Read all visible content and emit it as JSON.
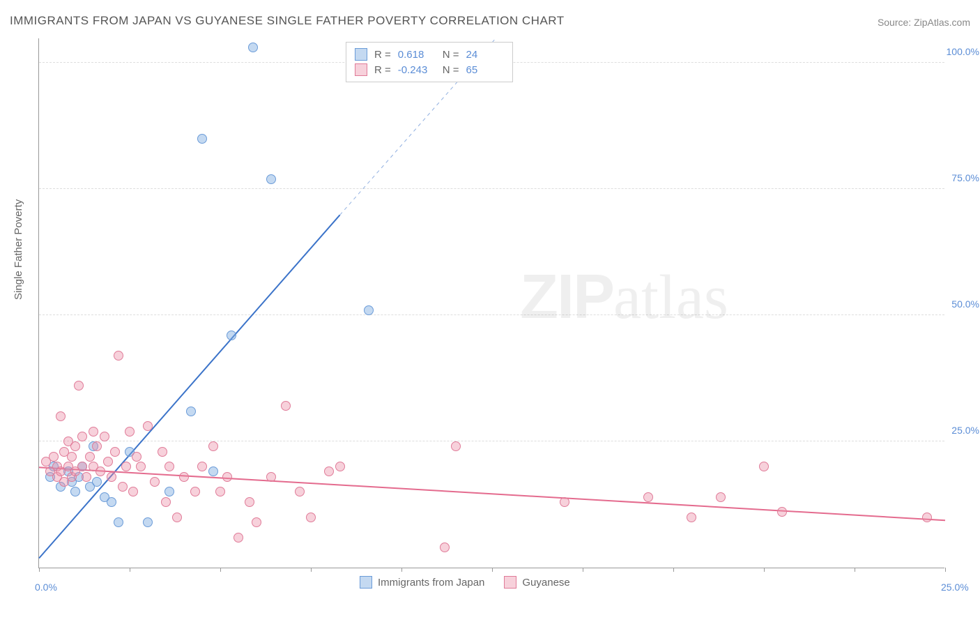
{
  "title": "IMMIGRANTS FROM JAPAN VS GUYANESE SINGLE FATHER POVERTY CORRELATION CHART",
  "source_label": "Source: ZipAtlas.com",
  "y_axis_label": "Single Father Poverty",
  "watermark_text_bold": "ZIP",
  "watermark_text_light": "atlas",
  "chart": {
    "type": "scatter",
    "xlim": [
      0,
      25
    ],
    "ylim": [
      0,
      105
    ],
    "x_ticks": [
      0,
      2.5,
      5,
      7.5,
      10,
      12.5,
      15,
      17.5,
      20,
      22.5,
      25
    ],
    "x_tick_labels": {
      "0": "0.0%",
      "25": "25.0%"
    },
    "y_ticks": [
      25,
      50,
      75,
      100
    ],
    "y_tick_labels": {
      "25": "25.0%",
      "50": "50.0%",
      "75": "75.0%",
      "100": "100.0%"
    },
    "background_color": "#ffffff",
    "grid_color": "#dddddd",
    "axis_color": "#999999",
    "tick_label_color": "#5b8dd6",
    "marker_radius": 7,
    "series": [
      {
        "name": "Immigrants from Japan",
        "color_fill": "rgba(124,170,223,0.45)",
        "color_stroke": "#6a9bd8",
        "r_value": "0.618",
        "n_value": "24",
        "trend": {
          "x1": 0,
          "y1": 2,
          "x2": 8.3,
          "y2": 70,
          "dash_x2": 12.6,
          "dash_y2": 105,
          "color": "#3b73c9",
          "width": 2
        },
        "points": [
          [
            0.3,
            18
          ],
          [
            0.4,
            20
          ],
          [
            0.6,
            16
          ],
          [
            0.8,
            19
          ],
          [
            0.9,
            17
          ],
          [
            1.0,
            15
          ],
          [
            1.1,
            18
          ],
          [
            1.2,
            20
          ],
          [
            1.4,
            16
          ],
          [
            1.5,
            24
          ],
          [
            1.6,
            17
          ],
          [
            1.8,
            14
          ],
          [
            2.0,
            13
          ],
          [
            2.2,
            9
          ],
          [
            2.5,
            23
          ],
          [
            3.0,
            9
          ],
          [
            3.6,
            15
          ],
          [
            4.2,
            31
          ],
          [
            4.5,
            85
          ],
          [
            4.8,
            19
          ],
          [
            5.3,
            46
          ],
          [
            5.9,
            103
          ],
          [
            6.4,
            77
          ],
          [
            9.1,
            51
          ]
        ]
      },
      {
        "name": "Guyanese",
        "color_fill": "rgba(235,140,165,0.40)",
        "color_stroke": "#e07b98",
        "r_value": "-0.243",
        "n_value": "65",
        "trend": {
          "x1": 0,
          "y1": 20,
          "x2": 25,
          "y2": 9.5,
          "color": "#e46b8e",
          "width": 2
        },
        "points": [
          [
            0.2,
            21
          ],
          [
            0.3,
            19
          ],
          [
            0.4,
            22
          ],
          [
            0.5,
            18
          ],
          [
            0.5,
            20
          ],
          [
            0.6,
            19
          ],
          [
            0.6,
            30
          ],
          [
            0.7,
            17
          ],
          [
            0.7,
            23
          ],
          [
            0.8,
            20
          ],
          [
            0.8,
            25
          ],
          [
            0.9,
            18
          ],
          [
            0.9,
            22
          ],
          [
            1.0,
            19
          ],
          [
            1.0,
            24
          ],
          [
            1.1,
            36
          ],
          [
            1.2,
            20
          ],
          [
            1.2,
            26
          ],
          [
            1.3,
            18
          ],
          [
            1.4,
            22
          ],
          [
            1.5,
            20
          ],
          [
            1.5,
            27
          ],
          [
            1.6,
            24
          ],
          [
            1.7,
            19
          ],
          [
            1.8,
            26
          ],
          [
            1.9,
            21
          ],
          [
            2.0,
            18
          ],
          [
            2.1,
            23
          ],
          [
            2.2,
            42
          ],
          [
            2.3,
            16
          ],
          [
            2.4,
            20
          ],
          [
            2.5,
            27
          ],
          [
            2.6,
            15
          ],
          [
            2.7,
            22
          ],
          [
            2.8,
            20
          ],
          [
            3.0,
            28
          ],
          [
            3.2,
            17
          ],
          [
            3.4,
            23
          ],
          [
            3.5,
            13
          ],
          [
            3.6,
            20
          ],
          [
            3.8,
            10
          ],
          [
            4.0,
            18
          ],
          [
            4.3,
            15
          ],
          [
            4.5,
            20
          ],
          [
            4.8,
            24
          ],
          [
            5.0,
            15
          ],
          [
            5.2,
            18
          ],
          [
            5.5,
            6
          ],
          [
            5.8,
            13
          ],
          [
            6.0,
            9
          ],
          [
            6.4,
            18
          ],
          [
            6.8,
            32
          ],
          [
            7.2,
            15
          ],
          [
            7.5,
            10
          ],
          [
            8.0,
            19
          ],
          [
            8.3,
            20
          ],
          [
            11.2,
            4
          ],
          [
            11.5,
            24
          ],
          [
            14.5,
            13
          ],
          [
            16.8,
            14
          ],
          [
            18.0,
            10
          ],
          [
            18.8,
            14
          ],
          [
            20.0,
            20
          ],
          [
            20.5,
            11
          ],
          [
            24.5,
            10
          ]
        ]
      }
    ]
  },
  "legend_top": {
    "r_label": "R =",
    "n_label": "N ="
  },
  "legend_bottom": {
    "series1": "Immigrants from Japan",
    "series2": "Guyanese"
  }
}
